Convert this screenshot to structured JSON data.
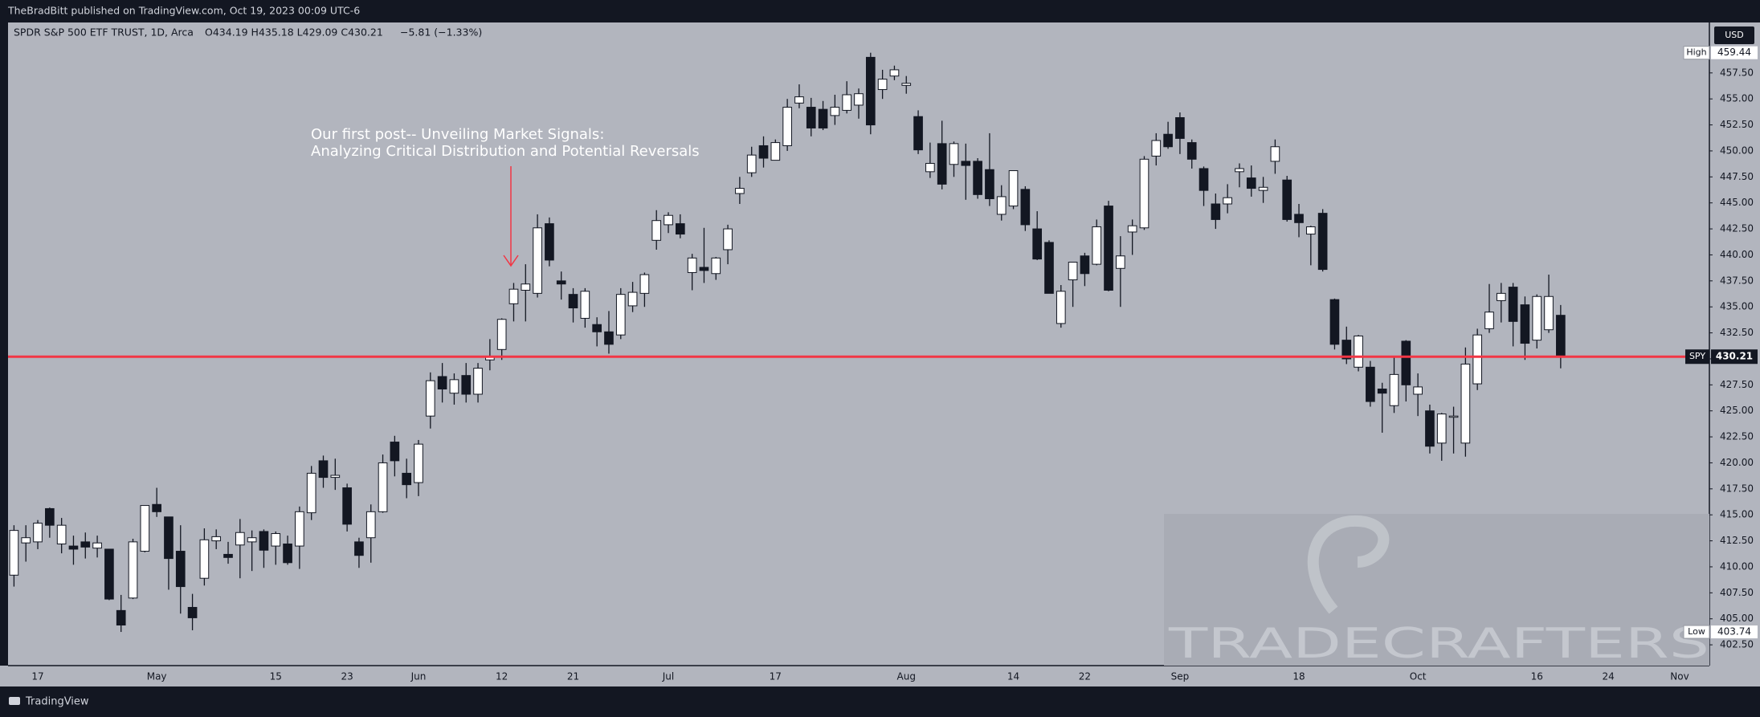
{
  "header": {
    "publisher": "TheBradBitt published on TradingView.com, Oct 19, 2023 00:09 UTC-6"
  },
  "legend": {
    "symbol": "SPDR S&P 500 ETF TRUST, 1D, Arca",
    "ohlc": "O434.19 H435.18 L429.09 C430.21",
    "change": "−5.81 (−1.33%)"
  },
  "footer": {
    "brand": "TradingView"
  },
  "watermark": "TRADECRAFTERS",
  "chart_data": {
    "type": "candlestick",
    "annotations": [
      "Our first post-- Unveiling Market Signals:",
      "Analyzing Critical Distribution and Potential Reversals"
    ],
    "currency": "USD",
    "price_line": {
      "label": "SPY",
      "value": 430.21,
      "color": "#f23645"
    },
    "high_marker": {
      "label": "High",
      "value": 459.44
    },
    "low_marker": {
      "label": "Low",
      "value": 403.74
    },
    "up_color": "#ffffff",
    "down_color": "#131722",
    "grid": false,
    "ylim": [
      400.5,
      462.35
    ],
    "yticks": [
      {
        "value": 402.5,
        "label": "402.50"
      },
      {
        "value": 405,
        "label": "405.00"
      },
      {
        "value": 407.5,
        "label": "407.50"
      },
      {
        "value": 410,
        "label": "410.00"
      },
      {
        "value": 412.5,
        "label": "412.50"
      },
      {
        "value": 415,
        "label": "415.00"
      },
      {
        "value": 417.5,
        "label": "417.50"
      },
      {
        "value": 420,
        "label": "420.00"
      },
      {
        "value": 422.5,
        "label": "422.50"
      },
      {
        "value": 425,
        "label": "425.00"
      },
      {
        "value": 427.5,
        "label": "427.50"
      },
      {
        "value": 430,
        "label": "430.00"
      },
      {
        "value": 432.5,
        "label": "432.50"
      },
      {
        "value": 435,
        "label": "435.00"
      },
      {
        "value": 437.5,
        "label": "437.50"
      },
      {
        "value": 440,
        "label": "440.00"
      },
      {
        "value": 442.5,
        "label": "442.50"
      },
      {
        "value": 445,
        "label": "445.00"
      },
      {
        "value": 447.5,
        "label": "447.50"
      },
      {
        "value": 450,
        "label": "450.00"
      },
      {
        "value": 452.5,
        "label": "452.50"
      },
      {
        "value": 455,
        "label": "455.00"
      },
      {
        "value": 457.5,
        "label": "457.50"
      }
    ],
    "categories": [
      null,
      null,
      "17",
      null,
      null,
      null,
      null,
      null,
      null,
      null,
      null,
      null,
      "May",
      null,
      null,
      null,
      null,
      null,
      null,
      null,
      null,
      null,
      "15",
      null,
      null,
      null,
      null,
      null,
      "23",
      null,
      null,
      null,
      null,
      null,
      "Jun",
      null,
      null,
      null,
      null,
      null,
      null,
      "12",
      null,
      null,
      null,
      null,
      null,
      "21",
      null,
      null,
      null,
      null,
      null,
      null,
      null,
      "Jul",
      null,
      null,
      null,
      null,
      null,
      null,
      null,
      null,
      "17",
      null,
      null,
      null,
      null,
      null,
      null,
      null,
      null,
      null,
      null,
      "Aug",
      null,
      null,
      null,
      null,
      null,
      null,
      null,
      null,
      "14",
      null,
      null,
      null,
      null,
      null,
      "22",
      null,
      null,
      null,
      null,
      null,
      null,
      null,
      "Sep",
      null,
      null,
      null,
      null,
      null,
      null,
      null,
      null,
      null,
      "18",
      null,
      null,
      null,
      null,
      null,
      null,
      null,
      null,
      null,
      "Oct",
      null,
      null,
      null,
      null,
      null,
      null,
      null,
      null,
      null,
      "16",
      null,
      null,
      null,
      null,
      null,
      "24",
      null,
      null,
      null,
      null,
      null,
      "Nov",
      null,
      null
    ],
    "open": [
      409.2,
      412.3,
      412.4,
      415.6,
      412.2,
      412.0,
      412.4,
      411.8,
      411.7,
      405.8,
      407.0,
      411.5,
      416.0,
      414.8,
      411.5,
      406.1,
      408.9,
      412.5,
      411.2,
      412.1,
      412.4,
      413.4,
      412.0,
      412.2,
      412.0,
      415.2,
      420.2,
      418.6,
      417.6,
      412.4,
      412.8,
      415.3,
      422.0,
      419.0,
      418.1,
      424.5,
      428.3,
      426.7,
      428.4,
      426.6,
      429.9,
      430.9,
      435.3,
      436.6,
      436.3,
      443.0,
      437.5,
      436.2,
      433.9,
      433.3,
      432.6,
      432.3,
      435.1,
      436.3,
      441.4,
      442.9,
      443.0,
      438.3,
      438.8,
      438.2,
      440.5,
      445.9,
      447.9,
      450.5,
      449.1,
      450.5,
      454.6,
      454.2,
      454.0,
      453.4,
      453.9,
      454.4,
      459.0,
      455.9,
      457.2,
      456.3,
      453.3,
      448.0,
      450.7,
      448.7,
      449.0,
      449.0,
      448.2,
      443.9,
      444.7,
      446.3,
      442.5,
      441.2,
      433.4,
      437.6,
      439.9,
      439.1,
      444.7,
      438.7,
      442.2,
      442.6,
      449.5,
      451.6,
      453.2,
      450.8,
      448.3,
      444.9,
      444.9,
      448.0,
      447.4,
      446.2,
      449.0,
      447.2,
      443.9,
      442.0,
      444.0,
      435.7,
      431.8,
      429.2,
      429.2,
      427.1,
      425.5,
      431.7,
      426.6,
      425.0,
      421.9,
      424.4,
      421.9,
      427.6,
      432.9,
      435.6,
      436.9,
      435.2,
      431.8,
      432.8,
      434.19,
      null,
      null,
      null,
      null,
      null,
      null,
      null,
      null,
      null,
      null,
      null,
      null
    ],
    "high": [
      414.0,
      414.0,
      414.5,
      415.7,
      414.7,
      413.0,
      413.3,
      413.0,
      411.7,
      407.3,
      412.7,
      415.9,
      417.6,
      414.8,
      414.0,
      407.4,
      413.7,
      413.6,
      412.4,
      414.6,
      413.5,
      413.6,
      413.4,
      413.0,
      415.8,
      419.7,
      420.7,
      420.4,
      418.0,
      412.8,
      416.0,
      420.8,
      422.6,
      420.4,
      422.2,
      428.7,
      429.6,
      428.6,
      429.6,
      429.6,
      431.9,
      433.9,
      437.3,
      439.1,
      443.9,
      443.6,
      438.4,
      436.8,
      436.8,
      434.0,
      434.6,
      436.8,
      437.4,
      438.3,
      444.3,
      444.1,
      443.9,
      440.1,
      442.6,
      439.8,
      442.9,
      447.5,
      450.4,
      451.4,
      451.1,
      455.0,
      456.4,
      455.1,
      454.8,
      455.4,
      456.7,
      456.0,
      459.44,
      457.8,
      458.2,
      457.2,
      453.9,
      450.8,
      452.9,
      450.9,
      450.7,
      449.3,
      451.7,
      446.7,
      448.1,
      446.6,
      444.2,
      441.4,
      437.1,
      439.3,
      440.2,
      443.4,
      445.2,
      441.8,
      443.4,
      449.5,
      451.7,
      452.8,
      453.7,
      451.1,
      448.5,
      445.9,
      446.8,
      448.8,
      448.6,
      447.5,
      451.1,
      447.6,
      444.9,
      442.8,
      444.4,
      435.8,
      433.1,
      432.3,
      429.8,
      427.7,
      430.2,
      431.8,
      428.6,
      425.6,
      424.8,
      425.4,
      431.1,
      432.9,
      437.2,
      437.3,
      437.3,
      436.0,
      436.2,
      438.1,
      435.18,
      null,
      null,
      null,
      null,
      null,
      null,
      null,
      null,
      null,
      null,
      null,
      null
    ],
    "low": [
      408.1,
      410.5,
      411.7,
      412.8,
      411.3,
      410.2,
      410.8,
      410.9,
      406.8,
      403.74,
      406.9,
      411.4,
      414.8,
      407.8,
      405.5,
      403.9,
      408.2,
      411.7,
      410.3,
      408.9,
      409.6,
      409.9,
      410.2,
      410.2,
      409.8,
      414.5,
      417.6,
      417.4,
      413.4,
      409.9,
      410.4,
      415.2,
      418.7,
      416.6,
      416.8,
      423.3,
      425.8,
      425.6,
      425.8,
      425.8,
      428.9,
      429.9,
      433.6,
      433.6,
      435.9,
      438.9,
      435.7,
      433.5,
      433.0,
      431.2,
      430.5,
      431.9,
      434.5,
      435.0,
      440.5,
      442.1,
      441.6,
      436.6,
      437.3,
      437.6,
      439.1,
      444.9,
      447.5,
      448.4,
      449.1,
      450.0,
      454.1,
      451.4,
      452.0,
      452.5,
      453.6,
      453.1,
      451.6,
      455.0,
      456.8,
      455.5,
      449.7,
      447.4,
      446.3,
      447.5,
      445.3,
      445.4,
      444.7,
      443.3,
      444.4,
      442.3,
      439.5,
      436.3,
      433.0,
      435.0,
      437.0,
      439.0,
      436.5,
      435.0,
      440.0,
      442.4,
      448.6,
      450.2,
      449.7,
      448.3,
      444.7,
      442.5,
      444.0,
      446.5,
      445.6,
      445.0,
      447.8,
      443.2,
      441.7,
      439.0,
      438.4,
      430.9,
      429.5,
      428.8,
      425.4,
      422.9,
      424.8,
      425.9,
      424.5,
      420.9,
      420.2,
      420.9,
      420.6,
      427.0,
      432.5,
      433.5,
      431.2,
      429.9,
      431.0,
      432.5,
      429.09,
      null,
      null,
      null,
      null,
      null,
      null,
      null,
      null,
      null,
      null,
      null,
      null
    ],
    "close": [
      413.5,
      412.8,
      414.2,
      414.0,
      414.0,
      411.7,
      411.9,
      412.3,
      406.9,
      404.4,
      412.4,
      415.9,
      415.3,
      410.8,
      408.1,
      405.1,
      412.6,
      412.9,
      410.9,
      413.3,
      412.8,
      411.6,
      413.2,
      410.4,
      415.3,
      419.0,
      418.6,
      418.8,
      414.1,
      411.1,
      415.3,
      420.0,
      420.2,
      417.9,
      421.8,
      427.9,
      427.1,
      428.0,
      426.6,
      429.1,
      430.2,
      433.8,
      436.7,
      437.2,
      442.6,
      439.5,
      437.2,
      434.9,
      436.5,
      432.6,
      431.4,
      436.2,
      436.4,
      438.1,
      443.3,
      443.8,
      442.0,
      439.7,
      438.5,
      439.7,
      442.5,
      446.4,
      449.6,
      449.3,
      450.8,
      454.2,
      455.2,
      452.2,
      452.2,
      454.2,
      455.4,
      455.5,
      452.5,
      456.9,
      457.8,
      456.5,
      450.1,
      448.8,
      446.8,
      450.7,
      448.6,
      445.8,
      445.4,
      445.6,
      448.1,
      442.9,
      439.6,
      436.3,
      436.5,
      439.3,
      438.2,
      442.7,
      436.6,
      439.9,
      442.8,
      449.2,
      451.0,
      450.4,
      451.2,
      449.2,
      446.2,
      443.4,
      445.5,
      448.3,
      446.4,
      446.5,
      450.4,
      443.4,
      443.1,
      442.7,
      438.6,
      431.4,
      430.0,
      432.2,
      425.9,
      426.7,
      428.5,
      427.5,
      427.3,
      421.6,
      424.7,
      424.5,
      429.5,
      432.3,
      434.5,
      436.3,
      433.6,
      431.5,
      436.0,
      436.0,
      430.21,
      null,
      null,
      null,
      null,
      null,
      null,
      null,
      null,
      null,
      null,
      null,
      null
    ]
  }
}
